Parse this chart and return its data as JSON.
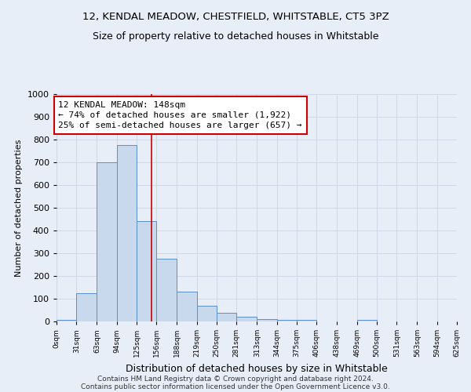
{
  "title1": "12, KENDAL MEADOW, CHESTFIELD, WHITSTABLE, CT5 3PZ",
  "title2": "Size of property relative to detached houses in Whitstable",
  "xlabel": "Distribution of detached houses by size in Whitstable",
  "ylabel": "Number of detached properties",
  "bin_labels": [
    "0sqm",
    "31sqm",
    "63sqm",
    "94sqm",
    "125sqm",
    "156sqm",
    "188sqm",
    "219sqm",
    "250sqm",
    "281sqm",
    "313sqm",
    "344sqm",
    "375sqm",
    "406sqm",
    "438sqm",
    "469sqm",
    "500sqm",
    "531sqm",
    "563sqm",
    "594sqm",
    "625sqm"
  ],
  "bar_values": [
    7,
    125,
    700,
    775,
    440,
    275,
    130,
    70,
    37,
    22,
    10,
    8,
    8,
    0,
    0,
    8,
    0,
    0,
    0,
    0
  ],
  "bar_color": "#c8d9ee",
  "bar_edge_color": "#5b8fc9",
  "grid_color": "#d0d8e8",
  "background_color": "#e8eef8",
  "vline_x": 148,
  "vline_color": "#cc0000",
  "annotation_text": "12 KENDAL MEADOW: 148sqm\n← 74% of detached houses are smaller (1,922)\n25% of semi-detached houses are larger (657) →",
  "annotation_box_color": "#ffffff",
  "annotation_box_edge": "#cc0000",
  "ylim": [
    0,
    1000
  ],
  "yticks": [
    0,
    100,
    200,
    300,
    400,
    500,
    600,
    700,
    800,
    900,
    1000
  ],
  "footer1": "Contains HM Land Registry data © Crown copyright and database right 2024.",
  "footer2": "Contains public sector information licensed under the Open Government Licence v3.0.",
  "bin_edges": [
    0,
    31,
    63,
    94,
    125,
    156,
    188,
    219,
    250,
    281,
    313,
    344,
    375,
    406,
    438,
    469,
    500,
    531,
    563,
    594,
    625
  ],
  "title1_fontsize": 9.5,
  "title2_fontsize": 9,
  "annotation_fontsize": 8,
  "footer_fontsize": 6.5,
  "xlabel_fontsize": 9,
  "ylabel_fontsize": 8
}
